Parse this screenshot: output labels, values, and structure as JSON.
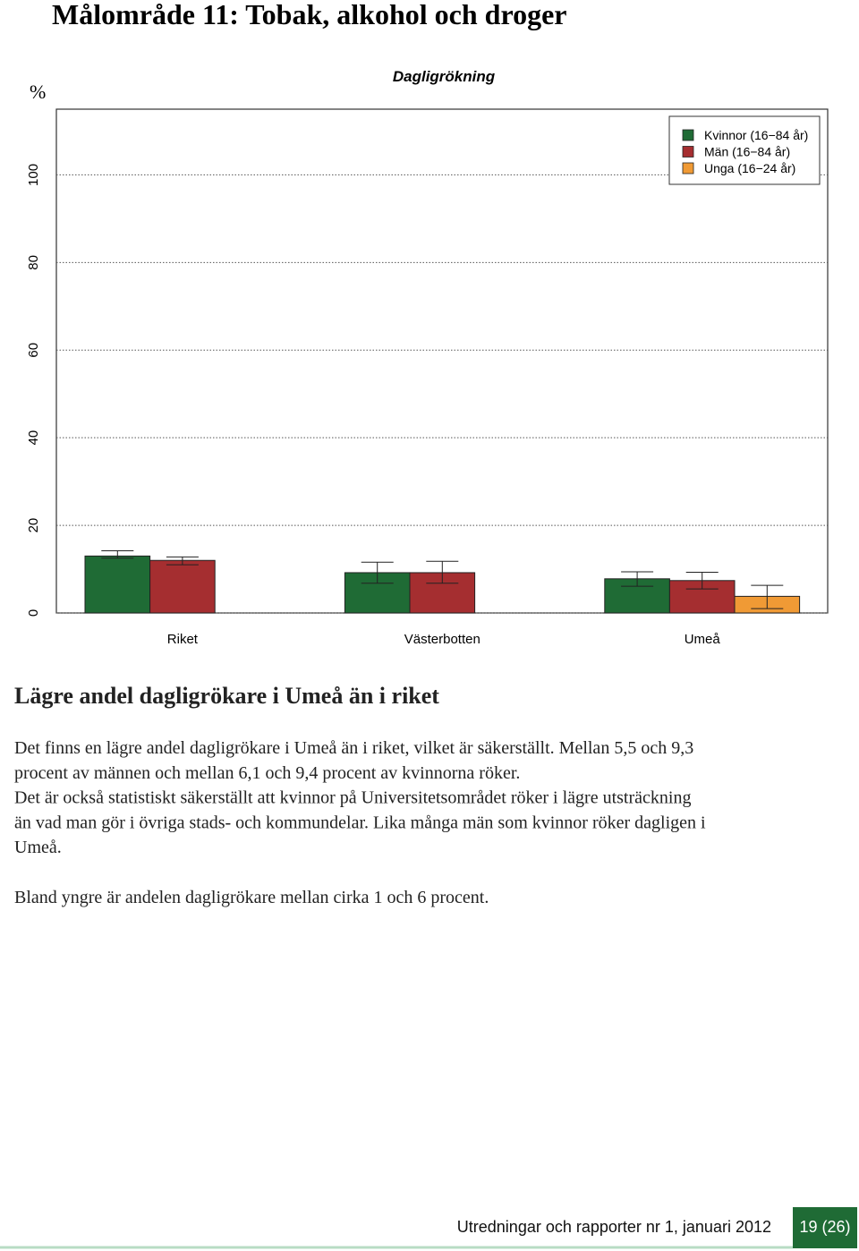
{
  "header": {
    "title": "Målområde 11: Tobak, alkohol och droger"
  },
  "chart_data": {
    "type": "bar",
    "title": "Dagligrökning",
    "y_label": "%",
    "categories": [
      "Riket",
      "Västerbotten",
      "Umeå"
    ],
    "series": [
      {
        "name": "Kvinnor (16−84 år)",
        "color": "#1f6b35",
        "values": [
          13,
          9.2,
          7.8
        ],
        "lower": [
          12.5,
          6.8,
          6.1
        ],
        "upper": [
          14.2,
          11.6,
          9.4
        ]
      },
      {
        "name": "Män (16−84 år)",
        "color": "#a52e30",
        "values": [
          12,
          9.2,
          7.4
        ],
        "lower": [
          11,
          6.8,
          5.5
        ],
        "upper": [
          12.8,
          11.8,
          9.3
        ]
      },
      {
        "name": "Unga (16−24 år)",
        "color": "#f09a35",
        "values": [
          null,
          null,
          3.8
        ],
        "lower": [
          null,
          null,
          1
        ],
        "upper": [
          null,
          null,
          6.3
        ]
      }
    ],
    "ylim": [
      0,
      115
    ],
    "yticks": [
      0,
      20,
      40,
      60,
      80,
      100
    ],
    "grid": true,
    "legend": "top-right"
  },
  "text": {
    "heading": "Lägre andel dagligrökare i Umeå än i riket",
    "paragraphs": [
      [
        "Det finns en lägre andel dagligrökare i Umeå än i riket, vilket är säkerställt. Mellan 5,5 och 9,3",
        "procent av männen och mellan 6,1 och 9,4 procent av kvinnorna röker.",
        "Det är också statistiskt säkerställt att kvinnor på Universitetsområdet röker i lägre utsträckning",
        "än vad man gör i övriga stads- och kommundelar. Lika många män som kvinnor röker dagligen i",
        "Umeå."
      ],
      [
        "Bland yngre är andelen dagligrökare mellan cirka 1 och 6 procent."
      ]
    ]
  },
  "footer": {
    "publication": "Utredningar och rapporter nr 1, januari 2012",
    "page": "19 (26)"
  }
}
